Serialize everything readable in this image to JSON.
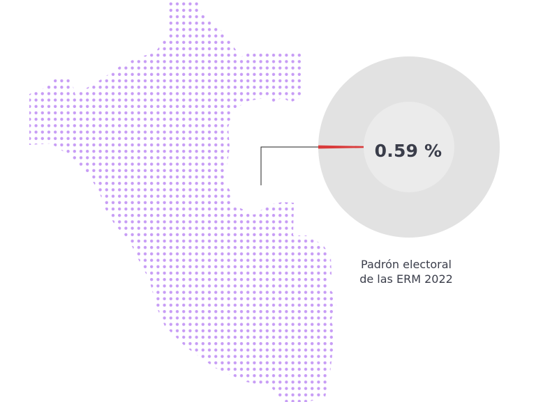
{
  "map": {
    "region": "Peru",
    "style": "dot-matrix",
    "gradient_colors": [
      "#c79cf5",
      "#a3b5f3",
      "#5fd3e4",
      "#3fd6de"
    ]
  },
  "indicator": {
    "percentage_label": "0.59 %",
    "percentage_value": 0.59,
    "ring_color": "#e2e2e2",
    "inner_color": "#ebebeb",
    "slice_color": "#d93a3a",
    "leader_color": "#222222"
  },
  "caption": {
    "line1": "Padrón electoral",
    "line2": "de las ERM 2022"
  }
}
